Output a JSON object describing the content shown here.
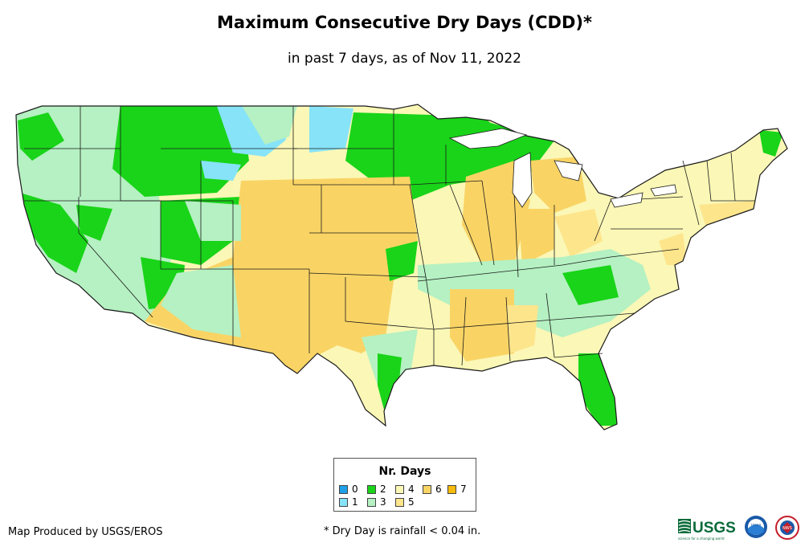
{
  "title": "Maximum Consecutive Dry Days (CDD)*",
  "subtitle": "in past 7 days, as of Nov 11, 2022",
  "legend": {
    "title": "Nr. Days",
    "items": [
      {
        "label": "0",
        "color": "#1f9fe6"
      },
      {
        "label": "1",
        "color": "#87e3f7"
      },
      {
        "label": "2",
        "color": "#19d419"
      },
      {
        "label": "3",
        "color": "#b5f1c2"
      },
      {
        "label": "4",
        "color": "#fbf7b6"
      },
      {
        "label": "5",
        "color": "#fde58c"
      },
      {
        "label": "6",
        "color": "#f9d465"
      },
      {
        "label": "7",
        "color": "#f6bb0c"
      }
    ]
  },
  "credit": "Map Produced by USGS/EROS",
  "footnote": "* Dry Day is rainfall < 0.04 in.",
  "logos": {
    "usgs": "USGS",
    "usgs_tagline": "science for a changing world",
    "noaa": "noaa",
    "nws": "NWS"
  },
  "colors": {
    "border": "#1a1a1a",
    "dry": "#f9d465",
    "green": "#19d419"
  }
}
